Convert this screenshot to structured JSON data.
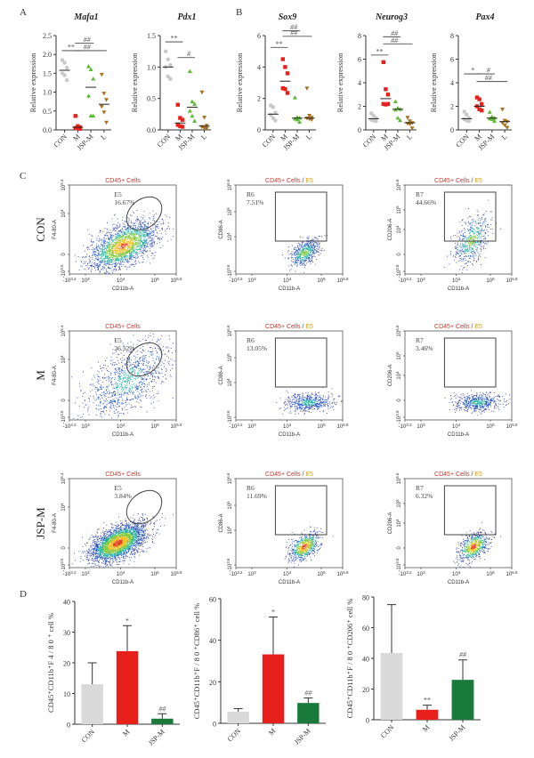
{
  "panels": {
    "A": "A",
    "B": "B",
    "C": "C",
    "D": "D"
  },
  "colors": {
    "CON": "#c8c8c8",
    "M": "#e8201c",
    "JSP-M": "#5cb833",
    "L": "#a8701e",
    "bar_CON": "#d9d9d9",
    "bar_M": "#e8201c",
    "bar_JSP-M": "#1a7a3a",
    "fc_title_red": "#c0392b",
    "fc_title_orange": "#d4a017"
  },
  "chart_data": [
    {
      "id": "mafa1",
      "type": "scatter",
      "title": "Mafa1",
      "ylabel": "Relative expression",
      "categories": [
        "CON",
        "M",
        "JSP-M",
        "L"
      ],
      "ylim": [
        0,
        2.5
      ],
      "yticks": [
        "0.0",
        "0.5",
        "1.0",
        "1.5",
        "2.0",
        "2.5"
      ],
      "ytick_values": [
        0,
        0.5,
        1.0,
        1.5,
        2.0,
        2.5
      ],
      "series": [
        {
          "name": "CON",
          "marker": "circle",
          "values": [
            1.85,
            1.78,
            1.65,
            1.5,
            1.45,
            1.32
          ],
          "mean": 1.58
        },
        {
          "name": "M",
          "marker": "square",
          "values": [
            0.37,
            0.1,
            0.07,
            0.05,
            0.04,
            0.03
          ],
          "mean": 0.07
        },
        {
          "name": "JSP-M",
          "marker": "triangle-up",
          "values": [
            1.68,
            1.6,
            1.35,
            0.9,
            0.37,
            0.37
          ],
          "mean": 1.13
        },
        {
          "name": "L",
          "marker": "triangle-down",
          "values": [
            1.47,
            0.97,
            0.8,
            0.62,
            0.47,
            0.2
          ],
          "mean": 0.68
        }
      ],
      "annotations": [
        {
          "text": "**",
          "from": "CON",
          "to": "M",
          "y": 2.1
        },
        {
          "text": "##",
          "from": "M",
          "to": "JSP-M",
          "y": 2.3
        },
        {
          "text": "##",
          "from": "M",
          "to": "L",
          "y": 2.1
        }
      ]
    },
    {
      "id": "pdx1",
      "type": "scatter",
      "title": "Pdx1",
      "ylabel": "Relative expression",
      "categories": [
        "CON",
        "M",
        "JSP-M",
        "L"
      ],
      "ylim": [
        0,
        1.5
      ],
      "yticks": [
        "0.0",
        "0.5",
        "1.0",
        "1.5"
      ],
      "ytick_values": [
        0,
        0.5,
        1.0,
        1.5
      ],
      "series": [
        {
          "name": "CON",
          "marker": "circle",
          "values": [
            1.25,
            1.12,
            1.03,
            1.0,
            0.85,
            0.81
          ],
          "mean": 1.0
        },
        {
          "name": "M",
          "marker": "square",
          "values": [
            0.4,
            0.19,
            0.16,
            0.08,
            0.06,
            0.05
          ],
          "mean": 0.11
        },
        {
          "name": "JSP-M",
          "marker": "triangle-up",
          "values": [
            0.93,
            0.45,
            0.41,
            0.3,
            0.22,
            0.14
          ],
          "mean": 0.36
        },
        {
          "name": "L",
          "marker": "triangle-down",
          "values": [
            0.6,
            0.2,
            0.07,
            0.05,
            0.03,
            0.02
          ],
          "mean": 0.06
        }
      ],
      "annotations": [
        {
          "text": "**",
          "from": "CON",
          "to": "M",
          "y": 1.4
        },
        {
          "text": "#",
          "from": "M",
          "to": "JSP-M",
          "y": 1.15
        }
      ]
    },
    {
      "id": "sox9",
      "type": "scatter",
      "title": "Sox9",
      "ylabel": "Relative expression",
      "categories": [
        "CON",
        "M",
        "JSP-M",
        "L"
      ],
      "ylim": [
        0,
        6
      ],
      "yticks": [
        "0",
        "2",
        "4",
        "6"
      ],
      "ytick_values": [
        0,
        2,
        4,
        6
      ],
      "series": [
        {
          "name": "CON",
          "marker": "circle",
          "values": [
            1.55,
            1.45,
            1.1,
            0.95,
            0.75,
            0.6
          ],
          "mean": 1.0
        },
        {
          "name": "M",
          "marker": "square",
          "values": [
            4.5,
            4.0,
            3.6,
            2.65,
            2.6,
            2.35
          ],
          "mean": 3.1
        },
        {
          "name": "JSP-M",
          "marker": "triangle-up",
          "values": [
            2.05,
            0.8,
            0.75,
            0.7,
            0.65,
            0.5
          ],
          "mean": 0.75
        },
        {
          "name": "L",
          "marker": "triangle-down",
          "values": [
            2.65,
            0.92,
            0.8,
            0.75,
            0.7,
            0.65
          ],
          "mean": 0.75
        }
      ],
      "annotations": [
        {
          "text": "**",
          "from": "CON",
          "to": "M",
          "y": 5.25
        },
        {
          "text": "##",
          "from": "M",
          "to": "JSP-M",
          "y": 6.3
        },
        {
          "text": "##",
          "from": "M",
          "to": "L",
          "y": 5.95
        }
      ]
    },
    {
      "id": "neurog3",
      "type": "scatter",
      "title": "Neurog3",
      "ylabel": "Relative expression",
      "categories": [
        "CON",
        "M",
        "JSP-M",
        "L"
      ],
      "ylim": [
        0,
        8
      ],
      "yticks": [
        "0",
        "2",
        "4",
        "6",
        "8"
      ],
      "ytick_values": [
        0,
        2,
        4,
        6,
        8
      ],
      "series": [
        {
          "name": "CON",
          "marker": "circle",
          "values": [
            1.4,
            1.2,
            1.0,
            0.85,
            0.8,
            0.75
          ],
          "mean": 0.95
        },
        {
          "name": "M",
          "marker": "square",
          "values": [
            5.75,
            3.45,
            3.0,
            2.2,
            2.15,
            2.2
          ],
          "mean": 2.65
        },
        {
          "name": "JSP-M",
          "marker": "triangle-up",
          "values": [
            2.4,
            1.85,
            1.75,
            1.7,
            1.0,
            0.8
          ],
          "mean": 1.75
        },
        {
          "name": "L",
          "marker": "triangle-down",
          "values": [
            1.05,
            0.75,
            0.6,
            0.55,
            0.5,
            0.15
          ],
          "mean": 0.6
        }
      ],
      "annotations": [
        {
          "text": "**",
          "from": "CON",
          "to": "M",
          "y": 6.35
        },
        {
          "text": "##",
          "from": "M",
          "to": "JSP-M",
          "y": 7.9
        },
        {
          "text": "##",
          "from": "M",
          "to": "L",
          "y": 7.3
        }
      ]
    },
    {
      "id": "pax4",
      "type": "scatter",
      "title": "Pax4",
      "ylabel": "Relative expression",
      "categories": [
        "CON",
        "M",
        "JSP-M",
        "L"
      ],
      "ylim": [
        0,
        8
      ],
      "yticks": [
        "0",
        "2",
        "4",
        "6",
        "8"
      ],
      "ytick_values": [
        0,
        2,
        4,
        6,
        8
      ],
      "series": [
        {
          "name": "CON",
          "marker": "circle",
          "values": [
            1.55,
            1.3,
            1.0,
            0.9,
            0.8,
            0.75
          ],
          "mean": 0.95
        },
        {
          "name": "M",
          "marker": "square",
          "values": [
            2.75,
            2.6,
            2.2,
            2.0,
            1.75,
            1.65
          ],
          "mean": 2.0
        },
        {
          "name": "JSP-M",
          "marker": "triangle-up",
          "values": [
            1.5,
            1.1,
            1.0,
            0.95,
            0.9,
            0.75
          ],
          "mean": 1.0
        },
        {
          "name": "L",
          "marker": "triangle-down",
          "values": [
            1.75,
            0.8,
            0.7,
            0.6,
            0.4,
            0.2
          ],
          "mean": 0.7
        }
      ],
      "annotations": [
        {
          "text": "*",
          "from": "CON",
          "to": "M",
          "y": 4.75
        },
        {
          "text": "#",
          "from": "M",
          "to": "JSP-M",
          "y": 4.75
        },
        {
          "text": "##",
          "from": "M",
          "to": "L",
          "y": 4.1
        }
      ]
    },
    {
      "id": "bar_f480",
      "type": "bar",
      "ylabel": "CD45⁺CD11b⁺F 4 / 8 0 ⁺ cell %",
      "categories": [
        "CON",
        "M",
        "JSP-M"
      ],
      "values": [
        13,
        23.8,
        1.8
      ],
      "errors": [
        7,
        8.3,
        1.6
      ],
      "ylim": [
        0,
        40
      ],
      "yticks": [
        "0",
        "10",
        "20",
        "30",
        "40"
      ],
      "ytick_values": [
        0,
        10,
        20,
        30,
        40
      ],
      "labels": [
        "",
        "*",
        "##"
      ]
    },
    {
      "id": "bar_cd86",
      "type": "bar",
      "ylabel": "CD45⁺CD11b⁺F / 8 0 ⁺CD86⁺ cell %",
      "categories": [
        "CON",
        "M",
        "JSP-M"
      ],
      "values": [
        5.6,
        33.2,
        9.8
      ],
      "errors": [
        1.5,
        18,
        2.4
      ],
      "ylim": [
        0,
        60
      ],
      "yticks": [
        "0",
        "20",
        "40",
        "60"
      ],
      "ytick_values": [
        0,
        20,
        40,
        60
      ],
      "labels": [
        "",
        "*",
        "##"
      ]
    },
    {
      "id": "bar_cd206",
      "type": "bar",
      "ylabel": "CD45⁺CD11b⁺F / 8 0 ⁺CD206⁺ cell %",
      "categories": [
        "CON",
        "M",
        "JSP-M"
      ],
      "values": [
        43.5,
        6.5,
        26
      ],
      "errors": [
        31.5,
        3,
        13
      ],
      "ylim": [
        0,
        80
      ],
      "yticks": [
        "0",
        "20",
        "40",
        "60",
        "80"
      ],
      "ytick_values": [
        0,
        20,
        40,
        60,
        80
      ],
      "labels": [
        "",
        "**",
        "##"
      ]
    }
  ],
  "flow": {
    "rows": [
      {
        "label": "CON",
        "E5": "16.67%",
        "R6": "7.51%",
        "R7": "44.66%",
        "density": "high"
      },
      {
        "label": "M",
        "E5": "26.52%",
        "R6": "13.05%",
        "R7": "3.46%",
        "density": "low"
      },
      {
        "label": "JSP-M",
        "E5": "3.84%",
        "R6": "11.69%",
        "R7": "6.32%",
        "density": "very-high"
      }
    ],
    "gate_names": {
      "E5": "E5",
      "R6": "R6",
      "R7": "R7"
    },
    "title_cells": "CD45+ Cells",
    "title_sep": " / ",
    "title_gate": "E5",
    "x_label": "CD11b-A",
    "y_labels": {
      "f480": "F4-80-A",
      "cd86": "CD86-A",
      "cd206": "CD206-A"
    },
    "x_ticks": [
      "-10",
      "10",
      "10",
      "10",
      "10"
    ],
    "x_tick_exp": [
      "3.2",
      "3",
      "4",
      "5",
      "5.8"
    ],
    "y_ticks_f480": [
      {
        "b": "10",
        "e": "5.4"
      },
      {
        "b": "10",
        "e": "4"
      },
      {
        "b": "0",
        "e": ""
      },
      {
        "b": "-10",
        "e": "3.5"
      }
    ],
    "y_ticks_cd86": [
      {
        "b": "10",
        "e": "6.6"
      },
      {
        "b": "10",
        "e": "5"
      },
      {
        "b": "10",
        "e": "4"
      },
      {
        "b": "-10",
        "e": "3.6"
      }
    ],
    "y_ticks_cd206": [
      {
        "b": "10",
        "e": "6.6"
      },
      {
        "b": "10",
        "e": "5"
      },
      {
        "b": "10",
        "e": "4"
      },
      {
        "b": "0",
        "e": ""
      },
      {
        "b": "-10",
        "e": "3.8"
      }
    ]
  }
}
